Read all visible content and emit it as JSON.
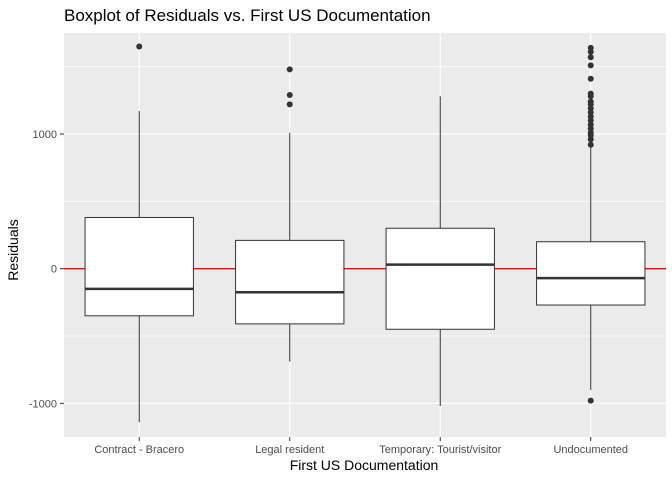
{
  "chart_data": {
    "type": "boxplot",
    "title": "Boxplot of Residuals vs. First US Documentation",
    "xlabel": "First US Documentation",
    "ylabel": "Residuals",
    "categories": [
      "Contract - Bracero",
      "Legal resident",
      "Temporary: Tourist/visitor",
      "Undocumented"
    ],
    "ylim": [
      -1250,
      1750
    ],
    "yticks": [
      -1000,
      0,
      1000
    ],
    "ytick_labels": [
      "-1000",
      "0",
      "1000"
    ],
    "grid": true,
    "reference_line": {
      "y": 0,
      "color": "#ff0000"
    },
    "boxes": [
      {
        "category": "Contract - Bracero",
        "whisker_low": -1140,
        "q1": -350,
        "median": -150,
        "q3": 380,
        "whisker_high": 1170,
        "outliers": [
          1650
        ]
      },
      {
        "category": "Legal resident",
        "whisker_low": -690,
        "q1": -410,
        "median": -175,
        "q3": 210,
        "whisker_high": 1010,
        "outliers": [
          1220,
          1290,
          1480
        ]
      },
      {
        "category": "Temporary: Tourist/visitor",
        "whisker_low": -1020,
        "q1": -450,
        "median": 30,
        "q3": 300,
        "whisker_high": 1280,
        "outliers": []
      },
      {
        "category": "Undocumented",
        "whisker_low": -900,
        "q1": -270,
        "median": -70,
        "q3": 200,
        "whisker_high": 900,
        "outliers": [
          -980,
          920,
          960,
          990,
          1010,
          1040,
          1070,
          1100,
          1130,
          1160,
          1190,
          1220,
          1240,
          1280,
          1300,
          1410,
          1510,
          1570,
          1610,
          1640
        ]
      }
    ],
    "colors": {
      "panel": "#ebebeb",
      "grid": "#ffffff",
      "box_fill": "#ffffff",
      "box_line": "#333333",
      "outlier": "#333333",
      "reference": "#ff0000"
    }
  }
}
